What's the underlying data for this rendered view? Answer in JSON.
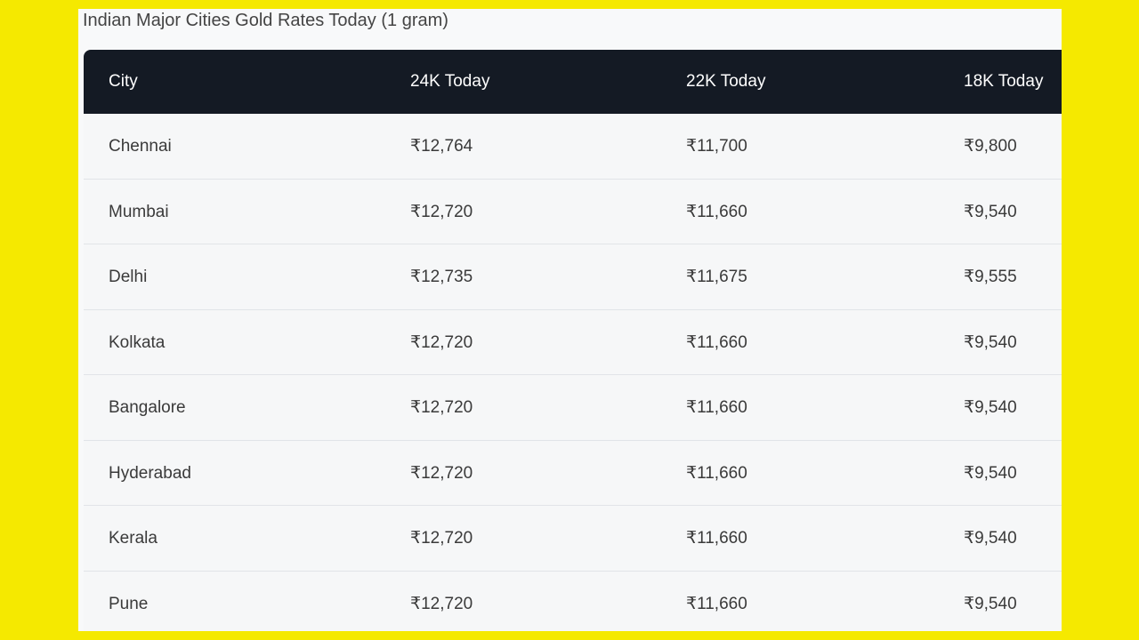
{
  "title": "Indian Major Cities Gold Rates Today (1 gram)",
  "colors": {
    "background": "#f5e900",
    "header": "#141a24"
  },
  "table": {
    "headers": [
      "City",
      "24K Today",
      "22K Today",
      "18K Today"
    ],
    "rows": [
      [
        "Chennai",
        "₹12,764",
        "₹11,700",
        "₹9,800"
      ],
      [
        "Mumbai",
        "₹12,720",
        "₹11,660",
        "₹9,540"
      ],
      [
        "Delhi",
        "₹12,735",
        "₹11,675",
        "₹9,555"
      ],
      [
        "Kolkata",
        "₹12,720",
        "₹11,660",
        "₹9,540"
      ],
      [
        "Bangalore",
        "₹12,720",
        "₹11,660",
        "₹9,540"
      ],
      [
        "Hyderabad",
        "₹12,720",
        "₹11,660",
        "₹9,540"
      ],
      [
        "Kerala",
        "₹12,720",
        "₹11,660",
        "₹9,540"
      ],
      [
        "Pune",
        "₹12,720",
        "₹11,660",
        "₹9,540"
      ]
    ]
  }
}
